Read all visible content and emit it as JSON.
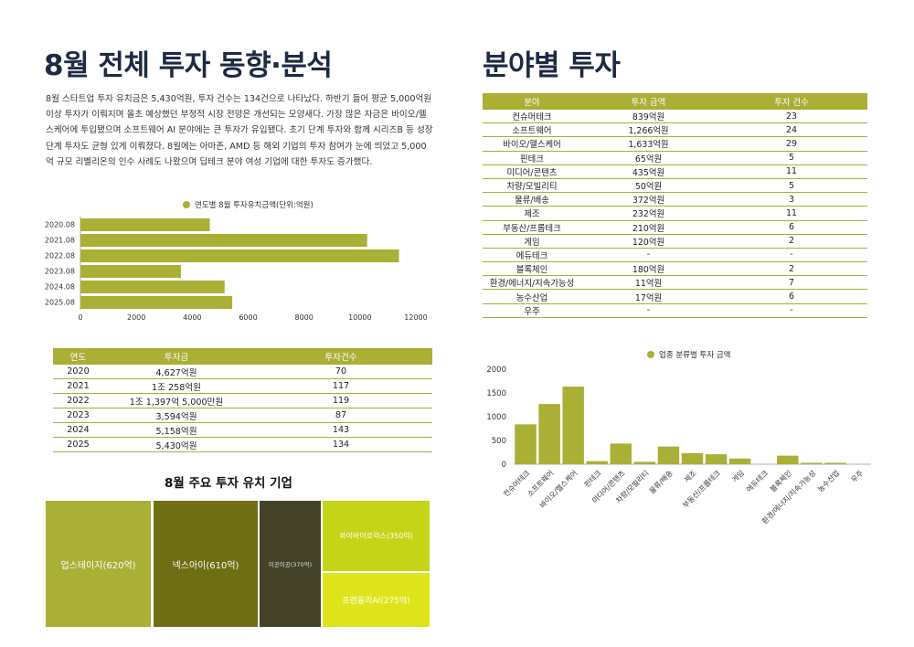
{
  "left_title": "8월 전체 투자 동향·분석",
  "right_title": "분야별 투자",
  "paragraph": "8월 스타트업 투자 유치금은 5,430억원, 투자 건수는 134건으로 나타났다. 하반기 들어 평균 5,000억원이상 투자가 이뤄지며 올초 예상했던 부정적 시장 전망은 개선되는 모양새다. 가장 많은 자금은 바이오/헬스케어에 투입됐으며 소프트웨어 AI 분야에는 큰 투자가 유입됐다. 초기 단계 투자와 함께 시리즈B 등 성장 단계 투자도 균형 있게 이뤄졌다. 8월에는 아마존, AMD 등 해외 기업의 투자 참여가 눈에 띄었고 5,000억 규모 리벨리온의 인수 사례도 나왔으며 딥테크 분야 여성 기업에 대한 투자도 증가했다.",
  "colors": {
    "accent": "#aaaf35"
  },
  "chart_data": [
    {
      "type": "bar",
      "orientation": "horizontal",
      "legend": "연도별 8월 투자유치금액(단위:억원)",
      "categories": [
        "2020.08",
        "2021.08",
        "2022.08",
        "2023.08",
        "2024.08",
        "2025.08"
      ],
      "values": [
        4627,
        10258,
        11397,
        3594,
        5158,
        5430
      ],
      "xlim": [
        0,
        12000
      ],
      "xticks": [
        "0",
        "2000",
        "4000",
        "6000",
        "8000",
        "10000",
        "12000"
      ],
      "legend_position": "top"
    },
    {
      "type": "bar",
      "orientation": "vertical",
      "legend": "업종 분류별 투자 금액",
      "categories": [
        "컨슈머테크",
        "소프트웨어",
        "바이오/헬스케어",
        "핀테크",
        "미디어/콘텐츠",
        "차량/모빌리티",
        "물류/배송",
        "제조",
        "부동산/프롭테크",
        "게임",
        "에듀테크",
        "블록체인",
        "환경/에너지/지속가능성",
        "농수산업",
        "우주"
      ],
      "values": [
        839,
        1266,
        1633,
        65,
        435,
        50,
        372,
        232,
        210,
        120,
        0,
        180,
        11,
        17,
        0
      ],
      "ylim": [
        0,
        2000
      ],
      "yticks": [
        "0",
        "500",
        "1000",
        "1500",
        "2000"
      ],
      "legend_position": "top"
    }
  ],
  "year_table": {
    "headers": [
      "연도",
      "투자금",
      "투자건수"
    ],
    "rows": [
      [
        "2020",
        "4,627억원",
        "70"
      ],
      [
        "2021",
        "1조 258억원",
        "117"
      ],
      [
        "2022",
        "1조 1,397억 5,000만원",
        "119"
      ],
      [
        "2023",
        "3,594억원",
        "87"
      ],
      [
        "2024",
        "5,158억원",
        "143"
      ],
      [
        "2025",
        "5,430억원",
        "134"
      ]
    ]
  },
  "sector_table": {
    "headers": [
      "분야",
      "투자 금액",
      "투자 건수"
    ],
    "rows": [
      [
        "컨슈머테크",
        "839억원",
        "23"
      ],
      [
        "소프트웨어",
        "1,266억원",
        "24"
      ],
      [
        "바이오/헬스케어",
        "1,633억원",
        "29"
      ],
      [
        "핀테크",
        "65억원",
        "5"
      ],
      [
        "미디어/콘텐츠",
        "435억원",
        "11"
      ],
      [
        "차량/모빌리티",
        "50억원",
        "5"
      ],
      [
        "물류/배송",
        "372억원",
        "3"
      ],
      [
        "제조",
        "232억원",
        "11"
      ],
      [
        "부동산/프롭테크",
        "210억원",
        "6"
      ],
      [
        "게임",
        "120억원",
        "2"
      ],
      [
        "에듀테크",
        "-",
        "-"
      ],
      [
        "블록체인",
        "180억원",
        "2"
      ],
      [
        "환경/에너지/지속가능성",
        "11억원",
        "7"
      ],
      [
        "농수산업",
        "17억원",
        "6"
      ],
      [
        "우주",
        "-",
        "-"
      ]
    ]
  },
  "treemap": {
    "title": "8월 주요 투자 유치 기업",
    "items": [
      {
        "label": "업스테이지(620억)",
        "value": 620,
        "color": "#aaaf35"
      },
      {
        "label": "넥스아이(610억)",
        "value": 610,
        "color": "#6f6e13"
      },
      {
        "label": "이공이공(370억)",
        "value": 370,
        "color": "#45422a"
      },
      {
        "label": "와이바이로럭스(350억)",
        "value": 350,
        "color": "#c6d418"
      },
      {
        "label": "프렌들리AI(275억)",
        "value": 275,
        "color": "#dde51a"
      }
    ]
  }
}
